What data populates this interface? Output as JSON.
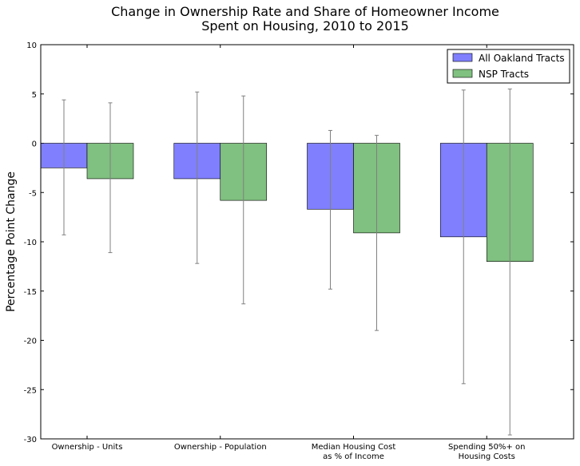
{
  "chart_data": {
    "type": "bar",
    "title_lines": [
      "Change in Ownership Rate and Share of Homeowner Income",
      "Spent on Housing, 2010 to 2015"
    ],
    "ylabel": "Percentage Point Change",
    "xlabel": "",
    "category_lines": [
      [
        "Ownership - Units"
      ],
      [
        "Ownership - Population"
      ],
      [
        "Median Housing Cost",
        "as % of Income"
      ],
      [
        "Spending 50%+ on",
        "Housing Costs"
      ]
    ],
    "ylim": [
      -30,
      10
    ],
    "yticks": [
      10,
      5,
      0,
      -5,
      -10,
      -15,
      -20,
      -25,
      -30
    ],
    "series": [
      {
        "name": "All Oakland Tracts",
        "color": "#8080ff",
        "values": [
          -2.5,
          -3.6,
          -6.7,
          -9.5
        ],
        "err_low": [
          -9.3,
          -12.2,
          -14.8,
          -24.4
        ],
        "err_high": [
          4.4,
          5.2,
          1.3,
          5.4
        ]
      },
      {
        "name": "NSP Tracts",
        "color": "#80c080",
        "values": [
          -3.6,
          -5.8,
          -9.1,
          -12.0
        ],
        "err_low": [
          -11.1,
          -16.3,
          -19.0,
          -29.6
        ],
        "err_high": [
          4.1,
          4.8,
          0.8,
          5.5
        ]
      }
    ],
    "legend_position": "top-right",
    "grid": false
  }
}
